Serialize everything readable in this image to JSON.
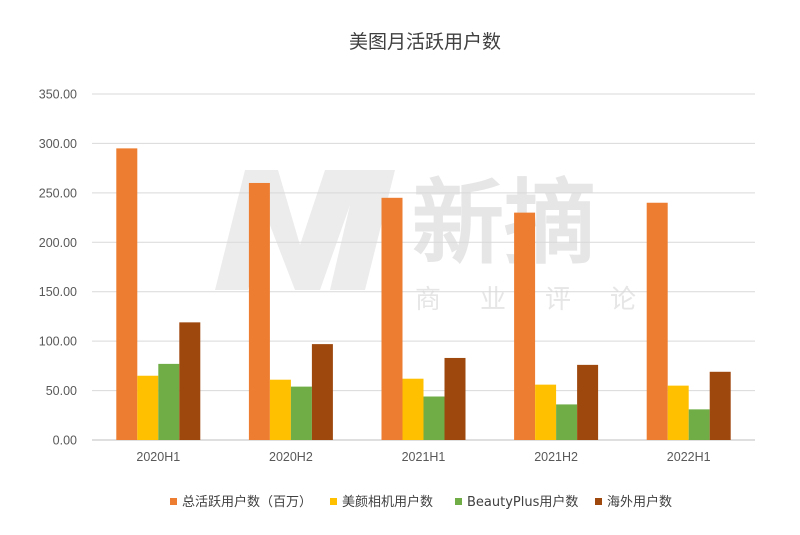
{
  "watermark": {
    "logo_text": "新摘",
    "subtitle_chars": [
      "商",
      "业",
      "评",
      "论"
    ]
  },
  "chart_data": {
    "type": "bar",
    "title": "美图月活跃用户数",
    "xlabel": "",
    "ylabel": "",
    "categories": [
      "2020H1",
      "2020H2",
      "2021H1",
      "2021H2",
      "2022H1"
    ],
    "ylim": [
      0,
      350
    ],
    "yticks": [
      "0.00",
      "50.00",
      "100.00",
      "150.00",
      "200.00",
      "250.00",
      "300.00",
      "350.00"
    ],
    "grid": true,
    "legend_position": "bottom",
    "series": [
      {
        "name": "总活跃用户数（百万）",
        "color": "#ed7d31",
        "values": [
          295,
          260,
          245,
          230,
          240
        ]
      },
      {
        "name": "美颜相机用户数",
        "color": "#ffc000",
        "values": [
          65,
          61,
          62,
          56,
          55
        ]
      },
      {
        "name": "BeautyPlus用户数",
        "color": "#70ad47",
        "values": [
          77,
          54,
          44,
          36,
          31
        ]
      },
      {
        "name": "海外用户数",
        "color": "#9e480e",
        "values": [
          119,
          97,
          83,
          76,
          69
        ]
      }
    ]
  }
}
